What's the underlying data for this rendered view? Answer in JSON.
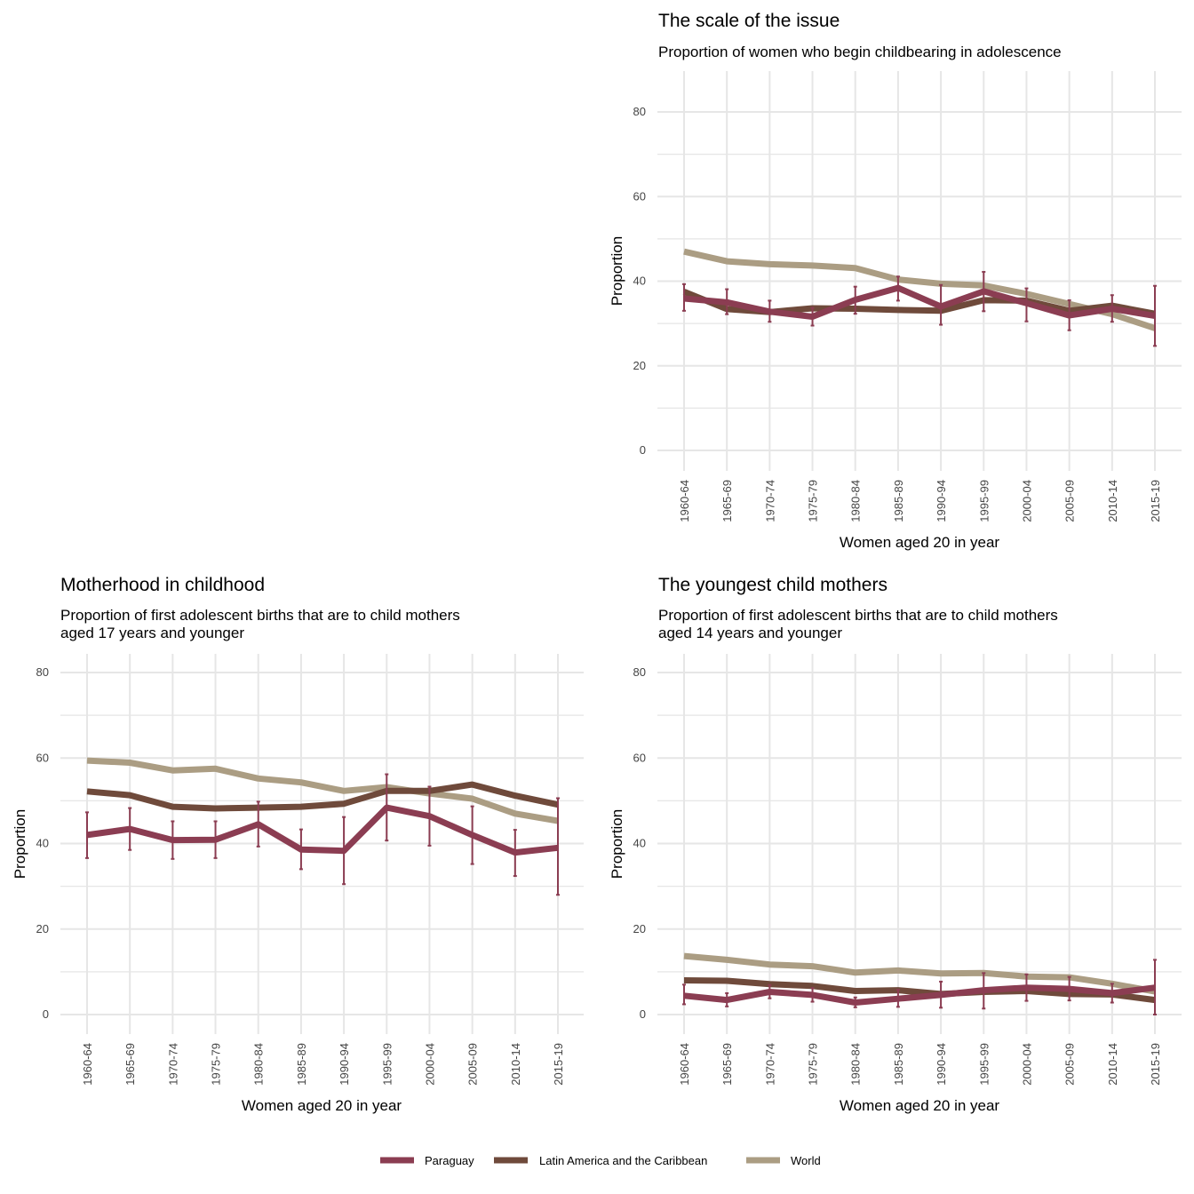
{
  "legend": {
    "items": [
      {
        "name": "Paraguay",
        "color": "#8b3d52"
      },
      {
        "name": "Latin America and the Caribbean",
        "color": "#6f4a3b"
      },
      {
        "name": "World",
        "color": "#ab9d83"
      }
    ]
  },
  "colors": {
    "paraguay": "#8b3d52",
    "lac": "#6f4a3b",
    "world": "#ab9d83",
    "grid": "#e6e6e6"
  },
  "chart_data": [
    {
      "type": "line",
      "title": "The scale of the issue",
      "subtitle": [
        "Proportion of women who begin childbearing in adolescence"
      ],
      "xlabel": "Women aged 20 in year",
      "ylabel": "Proportion",
      "ylim": [
        -3,
        90
      ],
      "yticks": [
        0,
        20,
        40,
        60,
        80
      ],
      "grid": true,
      "categories": [
        "1960-64",
        "1965-69",
        "1970-74",
        "1975-79",
        "1980-84",
        "1985-89",
        "1990-94",
        "1995-99",
        "2000-04",
        "2005-09",
        "2010-14",
        "2015-19"
      ],
      "series": [
        {
          "name": "World",
          "color": "#ab9d83",
          "values": [
            47.0,
            44.7,
            44.0,
            43.7,
            43.1,
            40.4,
            39.4,
            39.0,
            37.0,
            34.6,
            32.2,
            28.9
          ]
        },
        {
          "name": "Latin America and the Caribbean",
          "color": "#6f4a3b",
          "values": [
            37.5,
            33.4,
            32.7,
            33.6,
            33.5,
            33.2,
            33.0,
            35.5,
            35.4,
            33.0,
            34.2,
            32.3
          ]
        },
        {
          "name": "Paraguay",
          "color": "#8b3d52",
          "values": [
            35.9,
            35.0,
            32.8,
            31.6,
            35.6,
            38.4,
            34.0,
            37.6,
            34.8,
            31.9,
            33.5,
            31.8
          ],
          "lower": [
            33.0,
            32.2,
            30.4,
            29.5,
            32.3,
            35.4,
            29.7,
            32.9,
            30.5,
            28.4,
            30.4,
            24.7
          ],
          "upper": [
            39.3,
            38.1,
            35.4,
            33.7,
            38.7,
            41.1,
            39.1,
            42.2,
            38.3,
            35.5,
            36.7,
            38.9
          ]
        }
      ]
    },
    {
      "type": "line",
      "title": "Motherhood in childhood",
      "subtitle": [
        "Proportion of first adolescent births that are to child mothers",
        "aged 17 years and younger"
      ],
      "xlabel": "Women aged 20 in year",
      "ylabel": "Proportion",
      "ylim": [
        -3,
        85
      ],
      "yticks": [
        0,
        20,
        40,
        60,
        80
      ],
      "grid": true,
      "categories": [
        "1960-64",
        "1965-69",
        "1970-74",
        "1975-79",
        "1980-84",
        "1985-89",
        "1990-94",
        "1995-99",
        "2000-04",
        "2005-09",
        "2010-14",
        "2015-19"
      ],
      "series": [
        {
          "name": "World",
          "color": "#ab9d83",
          "values": [
            59.4,
            58.9,
            57.1,
            57.5,
            55.2,
            54.3,
            52.3,
            53.2,
            51.7,
            50.5,
            47.0,
            45.3
          ]
        },
        {
          "name": "Latin America and the Caribbean",
          "color": "#6f4a3b",
          "values": [
            52.2,
            51.3,
            48.6,
            48.2,
            48.4,
            48.6,
            49.3,
            52.3,
            52.3,
            53.8,
            51.2,
            49.1
          ]
        },
        {
          "name": "Paraguay",
          "color": "#8b3d52",
          "values": [
            42.0,
            43.4,
            40.8,
            40.9,
            44.5,
            38.6,
            38.3,
            48.4,
            46.4,
            42.0,
            37.9,
            39.0
          ],
          "lower": [
            36.6,
            38.5,
            36.4,
            36.6,
            39.3,
            34.0,
            30.5,
            40.7,
            39.5,
            35.2,
            32.4,
            28.0
          ],
          "upper": [
            47.3,
            48.3,
            45.2,
            45.2,
            49.8,
            43.3,
            46.2,
            56.2,
            53.3,
            48.7,
            43.2,
            50.6
          ]
        }
      ]
    },
    {
      "type": "line",
      "title": "The youngest child mothers",
      "subtitle": [
        "Proportion of first adolescent births that are to child mothers",
        "aged 14 years and younger"
      ],
      "xlabel": "Women aged 20 in year",
      "ylabel": "Proportion",
      "ylim": [
        -3,
        85
      ],
      "yticks": [
        0,
        20,
        40,
        60,
        80
      ],
      "grid": true,
      "categories": [
        "1960-64",
        "1965-69",
        "1970-74",
        "1975-79",
        "1980-84",
        "1985-89",
        "1990-94",
        "1995-99",
        "2000-04",
        "2005-09",
        "2010-14",
        "2015-19"
      ],
      "series": [
        {
          "name": "World",
          "color": "#ab9d83",
          "values": [
            13.7,
            12.8,
            11.7,
            11.3,
            9.8,
            10.3,
            9.6,
            9.7,
            8.9,
            8.7,
            7.2,
            5.4
          ]
        },
        {
          "name": "Latin America and the Caribbean",
          "color": "#6f4a3b",
          "values": [
            8.0,
            7.9,
            7.1,
            6.7,
            5.5,
            5.7,
            4.8,
            5.3,
            5.5,
            4.8,
            4.7,
            3.4
          ]
        },
        {
          "name": "Paraguay",
          "color": "#8b3d52",
          "values": [
            4.4,
            3.4,
            5.3,
            4.6,
            2.8,
            3.7,
            4.6,
            5.7,
            6.3,
            6.0,
            5.0,
            6.3
          ],
          "lower": [
            2.4,
            1.9,
            3.8,
            3.0,
            1.7,
            1.8,
            1.6,
            1.4,
            3.2,
            3.3,
            2.8,
            0.0
          ],
          "upper": [
            7.0,
            5.0,
            6.9,
            6.2,
            4.0,
            5.8,
            7.7,
            9.7,
            9.4,
            8.8,
            7.2,
            12.8
          ]
        }
      ]
    }
  ]
}
